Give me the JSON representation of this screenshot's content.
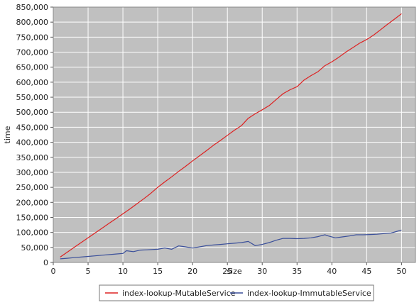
{
  "chart_data": {
    "type": "line",
    "title": "",
    "xlabel": "size",
    "ylabel": "time",
    "xlim": [
      0,
      52
    ],
    "ylim": [
      0,
      850000
    ],
    "x_ticks": [
      0,
      5,
      10,
      15,
      20,
      25,
      30,
      35,
      40,
      45,
      50
    ],
    "y_ticks": [
      0,
      50000,
      100000,
      150000,
      200000,
      250000,
      300000,
      350000,
      400000,
      450000,
      500000,
      550000,
      600000,
      650000,
      700000,
      750000,
      800000,
      850000
    ],
    "x_tick_labels": [
      "0",
      "5",
      "10",
      "15",
      "20",
      "25",
      "30",
      "35",
      "40",
      "45",
      "50"
    ],
    "y_tick_labels": [
      "0",
      "50,000",
      "100,000",
      "150,000",
      "200,000",
      "250,000",
      "300,000",
      "350,000",
      "400,000",
      "450,000",
      "500,000",
      "550,000",
      "600,000",
      "650,000",
      "700,000",
      "750,000",
      "800,000",
      "850,000"
    ],
    "grid": true,
    "plot_background": "#c0c0c0",
    "grid_color": "#ffffff",
    "legend_position": "bottom",
    "series": [
      {
        "name": "index-lookup-MutableService",
        "color": "#dd2222",
        "x": [
          1,
          2,
          3,
          4,
          5,
          6,
          7,
          8,
          9,
          10,
          11,
          12,
          13,
          14,
          15,
          16,
          17,
          18,
          19,
          20,
          21,
          22,
          23,
          24,
          25,
          26,
          27,
          28,
          29,
          30,
          31,
          32,
          33,
          34,
          35,
          36,
          37,
          38,
          39,
          40,
          41,
          42,
          43,
          44,
          45,
          46,
          47,
          48,
          49,
          50
        ],
        "values": [
          18000,
          34000,
          50000,
          66000,
          82000,
          98000,
          114000,
          130000,
          146000,
          162000,
          178000,
          195000,
          212000,
          230000,
          250000,
          268000,
          285000,
          303000,
          320000,
          338000,
          355000,
          372000,
          390000,
          406000,
          423000,
          440000,
          455000,
          480000,
          495000,
          508000,
          522000,
          542000,
          562000,
          575000,
          585000,
          607000,
          622000,
          635000,
          655000,
          668000,
          683000,
          700000,
          715000,
          730000,
          742000,
          757000,
          775000,
          793000,
          810000,
          828000
        ]
      },
      {
        "name": "index-lookup-ImmutableService",
        "color": "#3a4f9a",
        "x": [
          1,
          2,
          3,
          4,
          5,
          6,
          7,
          8,
          9,
          10,
          10.5,
          11.5,
          12.5,
          13.5,
          15,
          16,
          17,
          18,
          19,
          20,
          21,
          22,
          23,
          24,
          25,
          26,
          27,
          28,
          29,
          30,
          31,
          32,
          33,
          34,
          35,
          36,
          37,
          38,
          39,
          39.5,
          40.5,
          41.5,
          42.5,
          43.5,
          44.5,
          45.5,
          46.5,
          47.5,
          48.5,
          50
        ],
        "values": [
          12000,
          14000,
          16000,
          18000,
          20000,
          22000,
          24000,
          26000,
          28000,
          30000,
          39000,
          36000,
          41000,
          42000,
          44000,
          48000,
          44000,
          55000,
          52000,
          48000,
          52000,
          56000,
          58000,
          60000,
          62000,
          64000,
          66000,
          70000,
          56000,
          60000,
          66000,
          74000,
          80000,
          80000,
          79000,
          80000,
          82000,
          86000,
          92000,
          88000,
          82000,
          85000,
          88000,
          92000,
          92000,
          93000,
          94000,
          96000,
          98000,
          108000
        ]
      }
    ]
  }
}
